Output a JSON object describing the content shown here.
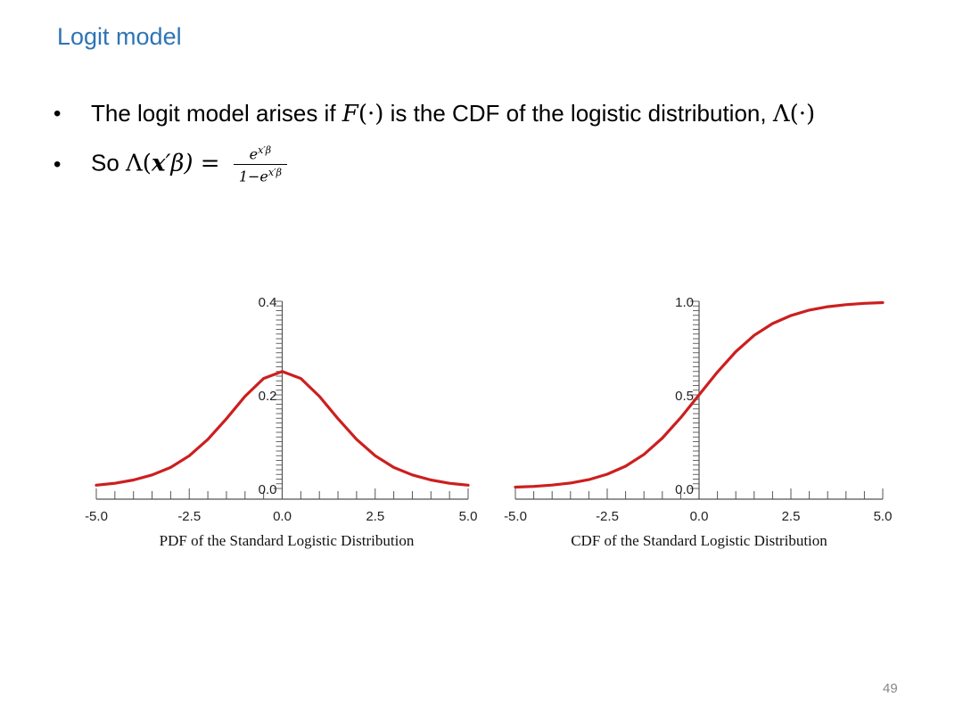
{
  "slide": {
    "title": "Logit model",
    "page_number": "49",
    "bullets": [
      {
        "text_before": "The logit model arises if ",
        "F_sym": "F",
        "F_arg": "(·)",
        "text_after": " is the CDF of the logistic distribution, ",
        "Lambda_sym": "Λ(·)"
      },
      {
        "text_before": "So ",
        "lhs_open": "Λ(",
        "lhs_x": "x",
        "lhs_rest": "′β) =",
        "numerator_base": "e",
        "numerator_exp": "x′β",
        "denominator_prefix": "1−e",
        "denominator_exp": "x′β"
      }
    ]
  },
  "colors": {
    "title": "#2e74b5",
    "curve": "#cc1f1f",
    "axis": "#555555"
  },
  "chart_data": [
    {
      "type": "line",
      "title": "PDF of the Standard Logistic Distribution",
      "xlim": [
        -5.0,
        5.0
      ],
      "ylim": [
        0.0,
        0.4
      ],
      "x_ticks": [
        "-5.0",
        "-2.5",
        "0.0",
        "2.5",
        "5.0"
      ],
      "y_ticks": [
        "0.0",
        "0.2",
        "0.4"
      ],
      "series": [
        {
          "x": [
            -5.0,
            -4.5,
            -4.0,
            -3.5,
            -3.0,
            -2.5,
            -2.0,
            -1.5,
            -1.0,
            -0.5,
            0.0,
            0.5,
            1.0,
            1.5,
            2.0,
            2.5,
            3.0,
            3.5,
            4.0,
            4.5,
            5.0
          ],
          "y": [
            0.007,
            0.011,
            0.018,
            0.029,
            0.045,
            0.07,
            0.105,
            0.149,
            0.197,
            0.235,
            0.25,
            0.235,
            0.197,
            0.149,
            0.105,
            0.07,
            0.045,
            0.029,
            0.018,
            0.011,
            0.007
          ]
        }
      ]
    },
    {
      "type": "line",
      "title": "CDF of the Standard Logistic Distribution",
      "xlim": [
        -5.0,
        5.0
      ],
      "ylim": [
        0.0,
        1.0
      ],
      "x_ticks": [
        "-5.0",
        "-2.5",
        "0.0",
        "2.5",
        "5.0"
      ],
      "y_ticks": [
        "0.0",
        "0.5",
        "1.0"
      ],
      "series": [
        {
          "x": [
            -5.0,
            -4.5,
            -4.0,
            -3.5,
            -3.0,
            -2.5,
            -2.0,
            -1.5,
            -1.0,
            -0.5,
            0.0,
            0.5,
            1.0,
            1.5,
            2.0,
            2.5,
            3.0,
            3.5,
            4.0,
            4.5,
            5.0
          ],
          "y": [
            0.007,
            0.011,
            0.018,
            0.029,
            0.047,
            0.076,
            0.119,
            0.182,
            0.269,
            0.378,
            0.5,
            0.622,
            0.731,
            0.818,
            0.881,
            0.924,
            0.953,
            0.971,
            0.982,
            0.989,
            0.993
          ]
        }
      ]
    }
  ]
}
